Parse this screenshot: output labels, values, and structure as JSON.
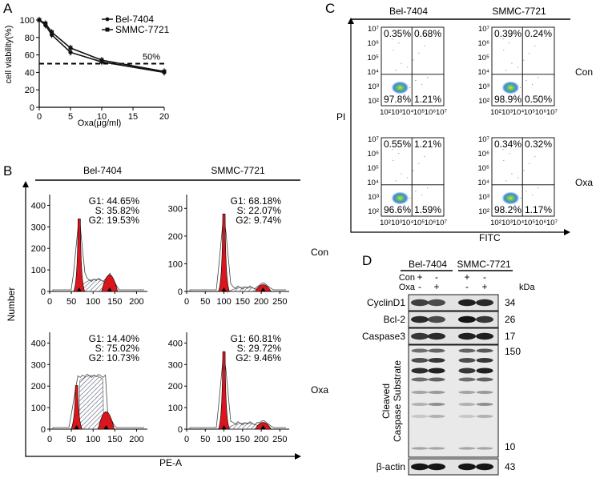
{
  "panelA": {
    "label": "A",
    "chart_data": {
      "type": "line",
      "ylabel": "cell viability(%)",
      "xlabel": "Oxa(μg/ml)",
      "x_ticks": [
        0,
        5,
        10,
        15,
        20
      ],
      "y_ticks": [
        0,
        20,
        40,
        60,
        80,
        100
      ],
      "xlim": [
        0,
        20
      ],
      "ylim": [
        0,
        100
      ],
      "threshold": {
        "value": 50,
        "label": "50%"
      },
      "series": [
        {
          "name": "Bel-7404",
          "x": [
            0,
            1,
            2,
            5,
            10,
            20
          ],
          "y": [
            100,
            94,
            83,
            63,
            52,
            40
          ]
        },
        {
          "name": "SMMC-7721",
          "x": [
            0,
            1,
            2,
            5,
            10,
            20
          ],
          "y": [
            100,
            96,
            86,
            68,
            54,
            41
          ]
        }
      ]
    }
  },
  "panelB": {
    "label": "B",
    "col_headers": [
      "Bel-7404",
      "SMMC-7721"
    ],
    "row_labels": [
      "Con",
      "Oxa"
    ],
    "ylabel": "Number",
    "xlabel": "PE-A",
    "plots": [
      {
        "lines": [
          "G1: 44.65%",
          "S: 35.82%",
          "G2: 19.53%"
        ],
        "y_ticks": [
          "0",
          "100",
          "200",
          "300",
          "400"
        ],
        "x_ticks": [
          "0",
          "50",
          "100",
          "150",
          "200"
        ],
        "g1": 68,
        "g2": 138,
        "g1_h": 0.75,
        "g2_h": 0.17,
        "s_fill": 0.12
      },
      {
        "lines": [
          "G1: 68.18%",
          "S: 22.07%",
          "G2: 9.74%"
        ],
        "y_ticks": [
          "0",
          "100",
          "200",
          "300"
        ],
        "x_ticks": [
          "0",
          "50",
          "100",
          "150",
          "200",
          "250"
        ],
        "g1": 100,
        "g2": 205,
        "g1_h": 0.8,
        "g2_h": 0.07,
        "s_fill": 0.04
      },
      {
        "lines": [
          "G1: 14.40%",
          "S: 75.02%",
          "G2: 10.73%"
        ],
        "y_ticks": [
          "0",
          "100",
          "200",
          "300",
          "400"
        ],
        "x_ticks": [
          "0",
          "50",
          "100",
          "150",
          "200"
        ],
        "g1": 62,
        "g2": 130,
        "g1_h": 0.45,
        "g2_h": 0.18,
        "s_fill": 0.55
      },
      {
        "lines": [
          "G1: 60.81%",
          "S: 29.72%",
          "G2: 9.46%"
        ],
        "y_ticks": [
          "0",
          "100",
          "200",
          "300",
          "400"
        ],
        "x_ticks": [
          "0",
          "50",
          "100",
          "150",
          "200",
          "250"
        ],
        "g1": 100,
        "g2": 205,
        "g1_h": 0.8,
        "g2_h": 0.07,
        "s_fill": 0.06
      }
    ]
  },
  "panelC": {
    "label": "C",
    "col_headers": [
      "Bel-7404",
      "SMMC-7721"
    ],
    "row_labels": [
      "Con",
      "Oxa"
    ],
    "ylabel": "PI",
    "xlabel": "FITC",
    "y_ticks": [
      "10²",
      "10³",
      "10⁴",
      "10⁵",
      "10⁶",
      "10⁷"
    ],
    "x_ticks": [
      "10²",
      "10³",
      "10⁴",
      "10⁵",
      "10⁶",
      "10⁷"
    ],
    "quadrants": [
      {
        "ul": "0.35%",
        "ur": "0.68%",
        "ll": "97.8%",
        "lr": "1.21%"
      },
      {
        "ul": "0.39%",
        "ur": "0.24%",
        "ll": "98.9%",
        "lr": "0.50%"
      },
      {
        "ul": "0.55%",
        "ur": "1.21%",
        "ll": "96.6%",
        "lr": "1.59%"
      },
      {
        "ul": "0.34%",
        "ur": "0.32%",
        "ll": "98.2%",
        "lr": "1.17%"
      }
    ]
  },
  "panelD": {
    "label": "D",
    "col_headers": [
      "Bel-7404",
      "SMMC-7721"
    ],
    "con_label": "Con",
    "oxa_label": "Oxa",
    "kda_label": "kDa",
    "con_signs": [
      "+",
      "-",
      "+",
      "-"
    ],
    "oxa_signs": [
      "-",
      "+",
      "-",
      "+"
    ],
    "cleaved_label_1": "Cleaved",
    "cleaved_label_2": "Caspase Substrate",
    "blots": [
      {
        "name": "CyclinD1",
        "kda": "34"
      },
      {
        "name": "Bcl-2",
        "kda": "26"
      },
      {
        "name": "Caspase3",
        "kda": "17"
      },
      {
        "name": "β-actin",
        "kda": "43"
      }
    ],
    "cleaved_kda_top": "150",
    "cleaved_kda_bottom": "10"
  }
}
